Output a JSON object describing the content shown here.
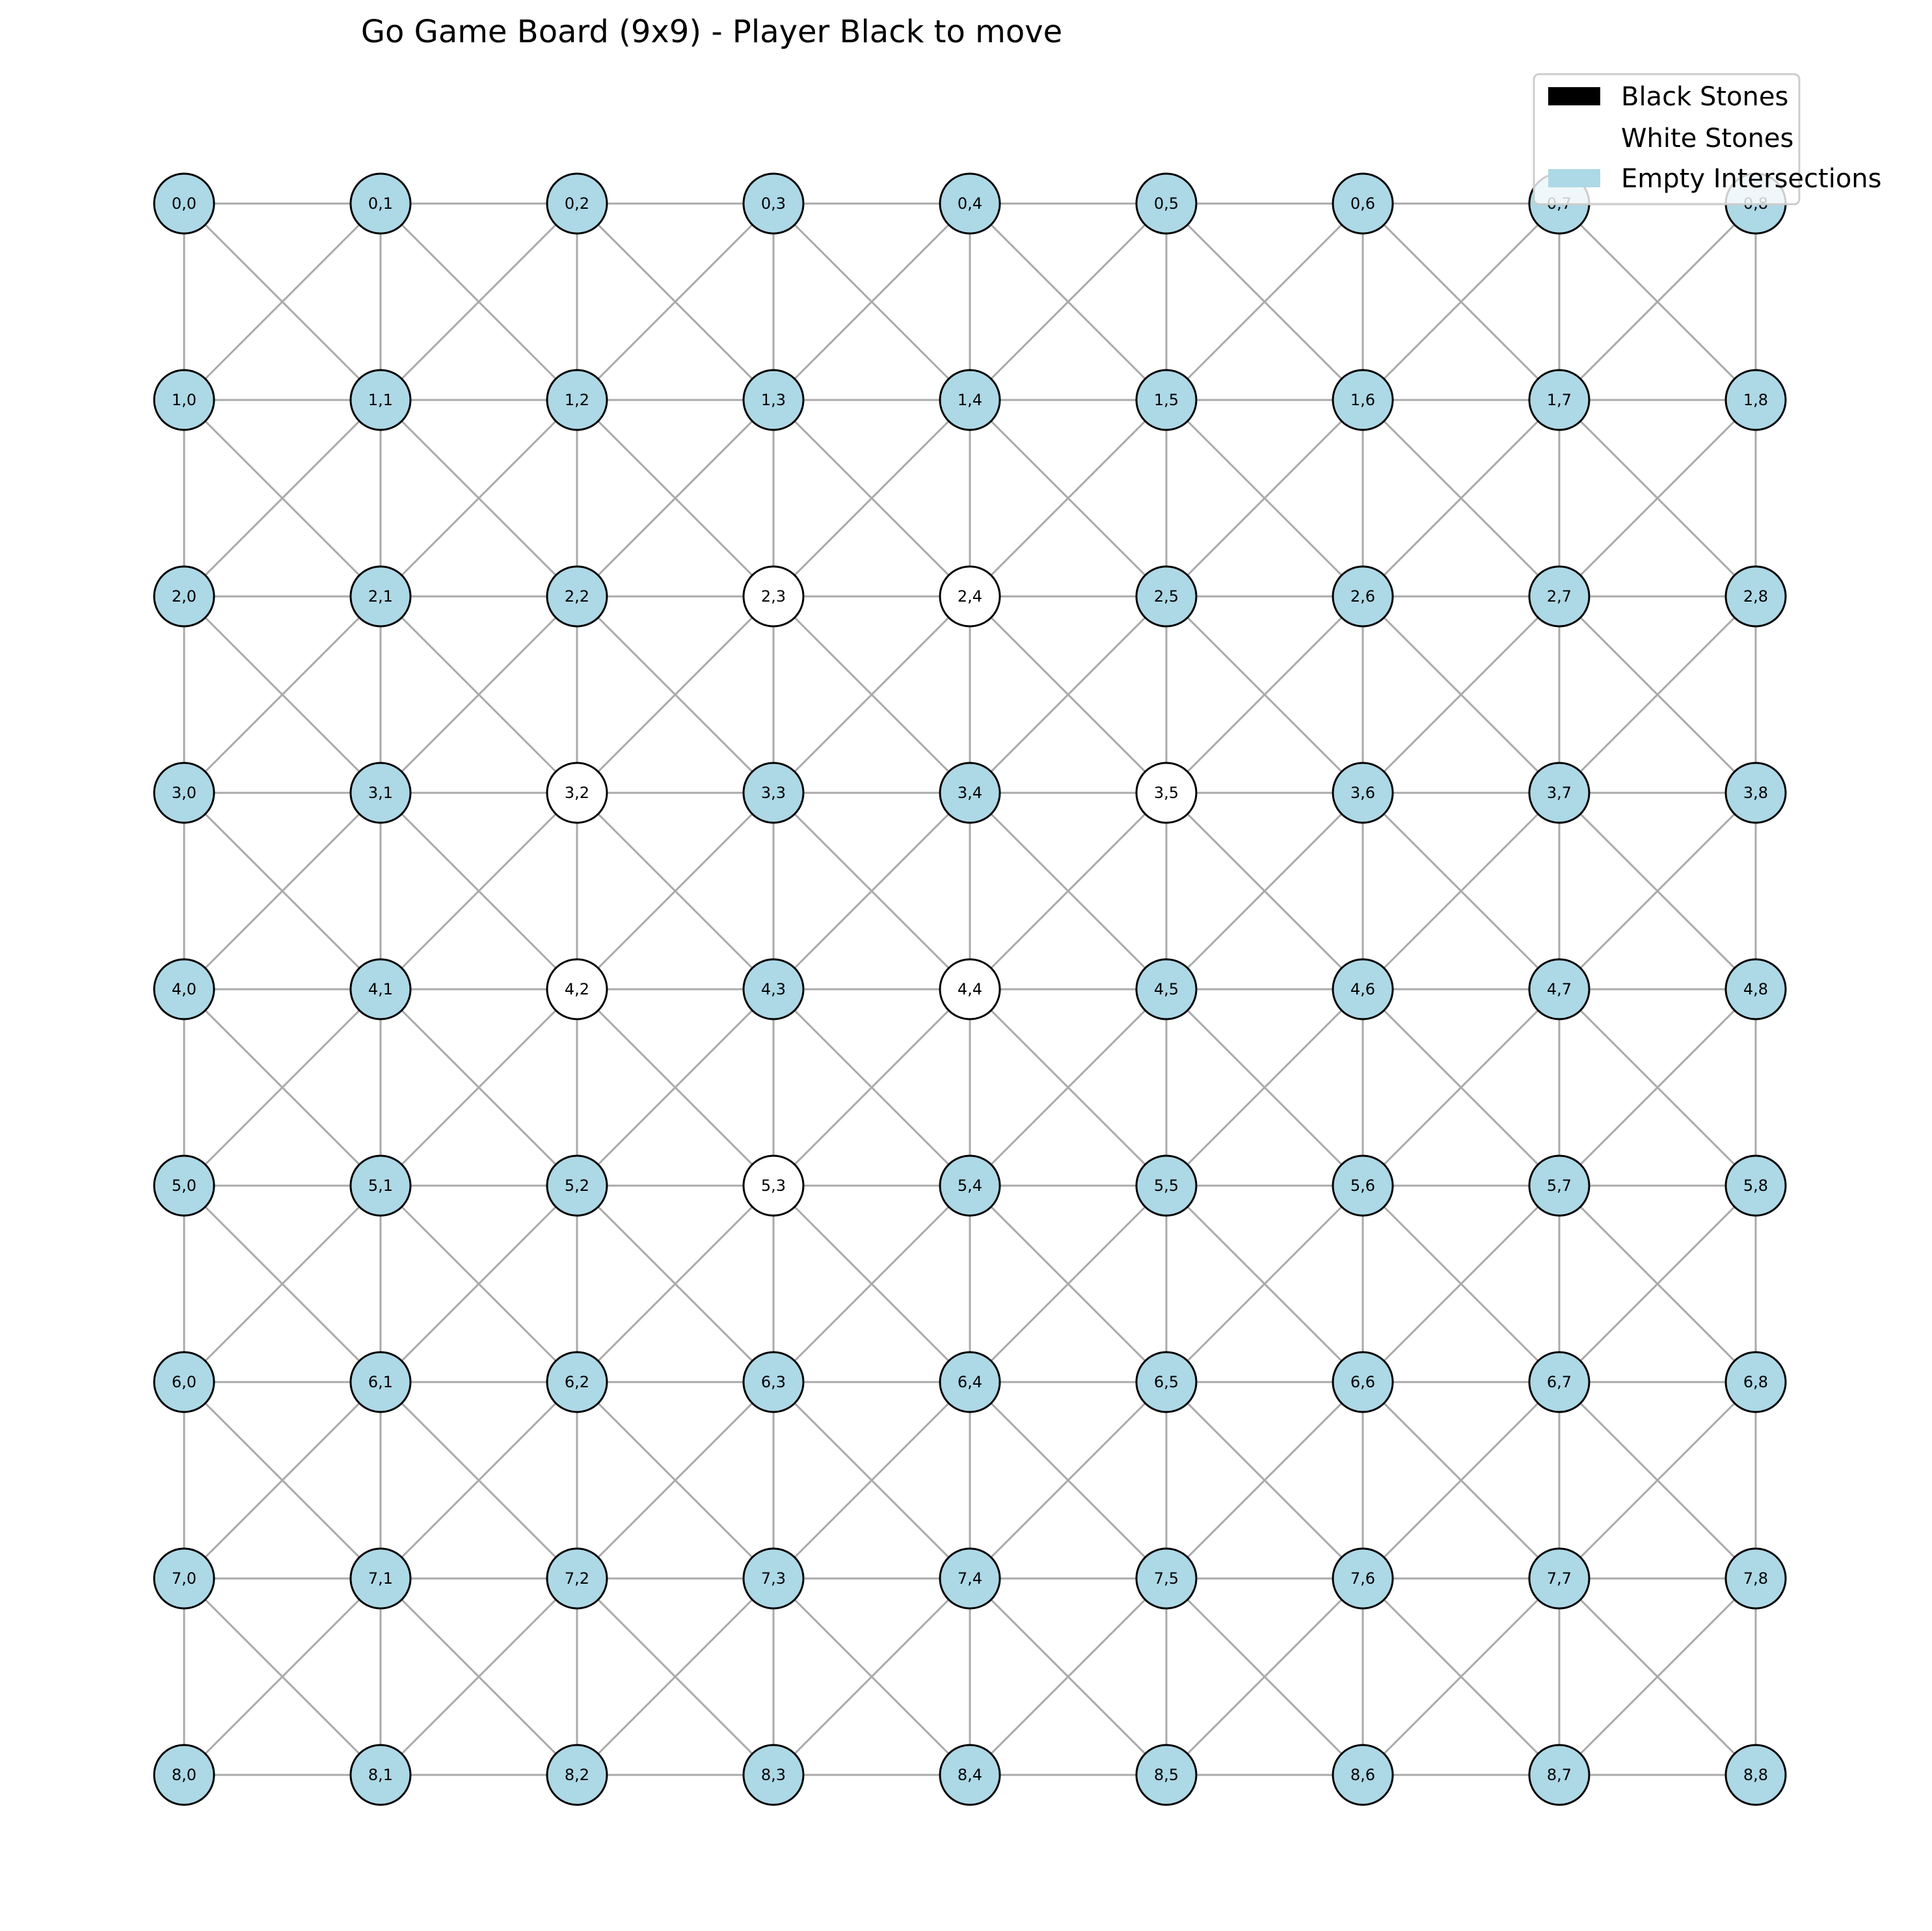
{
  "title": "Go Game Board (9x9) - Player Black to move",
  "legend": {
    "black": "Black Stones",
    "white": "White Stones",
    "empty": "Empty Intersections"
  },
  "colors": {
    "black": "#000000",
    "white": "#ffffff",
    "empty": "#add8e6",
    "edge": "#aaaaaa",
    "outline": "#000000"
  },
  "board": {
    "size": 9,
    "label_format": "row,col",
    "edges": [
      "orthogonal",
      "diagonal"
    ],
    "white_stones": [
      [
        2,
        3
      ],
      [
        2,
        4
      ],
      [
        3,
        2
      ],
      [
        3,
        5
      ],
      [
        4,
        2
      ],
      [
        4,
        4
      ],
      [
        5,
        3
      ]
    ],
    "black_stones": []
  }
}
